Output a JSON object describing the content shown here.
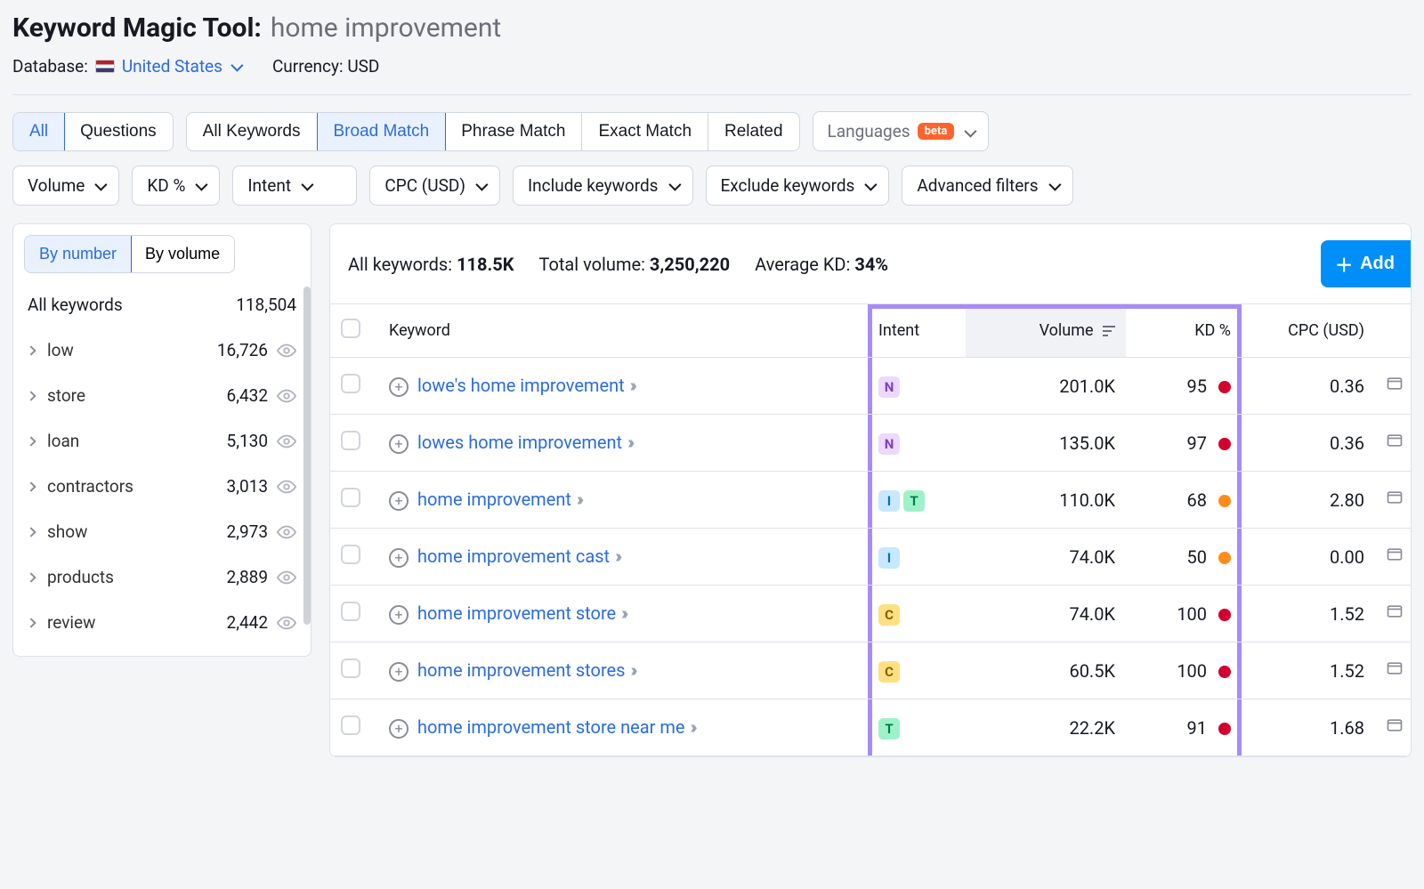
{
  "header": {
    "tool_name": "Keyword Magic Tool:",
    "query": "home improvement",
    "database_label": "Database:",
    "database_value": "United States",
    "currency_label": "Currency:",
    "currency_value": "USD"
  },
  "filter_tabs_1": {
    "all": "All",
    "questions": "Questions"
  },
  "filter_tabs_2": {
    "all_keywords": "All Keywords",
    "broad": "Broad Match",
    "phrase": "Phrase Match",
    "exact": "Exact Match",
    "related": "Related"
  },
  "languages": {
    "label": "Languages",
    "badge": "beta"
  },
  "dropdowns": {
    "volume": "Volume",
    "kd": "KD %",
    "intent": "Intent",
    "cpc": "CPC (USD)",
    "include": "Include keywords",
    "exclude": "Exclude keywords",
    "advanced": "Advanced filters"
  },
  "sidebar": {
    "by_number": "By number",
    "by_volume": "By volume",
    "all_keywords_label": "All keywords",
    "all_keywords_count": "118,504",
    "items": [
      {
        "name": "low",
        "count": "16,726"
      },
      {
        "name": "store",
        "count": "6,432"
      },
      {
        "name": "loan",
        "count": "5,130"
      },
      {
        "name": "contractors",
        "count": "3,013"
      },
      {
        "name": "show",
        "count": "2,973"
      },
      {
        "name": "products",
        "count": "2,889"
      },
      {
        "name": "review",
        "count": "2,442"
      }
    ]
  },
  "summary": {
    "all_keywords_label": "All keywords:",
    "all_keywords_value": "118.5K",
    "total_volume_label": "Total volume:",
    "total_volume_value": "3,250,220",
    "avg_kd_label": "Average KD:",
    "avg_kd_value": "34%",
    "add_button": "Add"
  },
  "columns": {
    "keyword": "Keyword",
    "intent": "Intent",
    "volume": "Volume",
    "kd": "KD %",
    "cpc": "CPC (USD)"
  },
  "rows": [
    {
      "keyword": "lowe's home improvement",
      "intents": [
        "N"
      ],
      "volume": "201.0K",
      "kd": "95",
      "kd_color": "kd-red",
      "cpc": "0.36"
    },
    {
      "keyword": "lowes home improvement",
      "intents": [
        "N"
      ],
      "volume": "135.0K",
      "kd": "97",
      "kd_color": "kd-red",
      "cpc": "0.36"
    },
    {
      "keyword": "home improvement",
      "intents": [
        "I",
        "T"
      ],
      "volume": "110.0K",
      "kd": "68",
      "kd_color": "kd-orange",
      "cpc": "2.80"
    },
    {
      "keyword": "home improvement cast",
      "intents": [
        "I"
      ],
      "volume": "74.0K",
      "kd": "50",
      "kd_color": "kd-orange",
      "cpc": "0.00"
    },
    {
      "keyword": "home improvement store",
      "intents": [
        "C"
      ],
      "volume": "74.0K",
      "kd": "100",
      "kd_color": "kd-red",
      "cpc": "1.52"
    },
    {
      "keyword": "home improvement stores",
      "intents": [
        "C"
      ],
      "volume": "60.5K",
      "kd": "100",
      "kd_color": "kd-red",
      "cpc": "1.52"
    },
    {
      "keyword": "home improvement store near me",
      "intents": [
        "T"
      ],
      "volume": "22.2K",
      "kd": "91",
      "kd_color": "kd-red",
      "cpc": "1.68"
    }
  ]
}
